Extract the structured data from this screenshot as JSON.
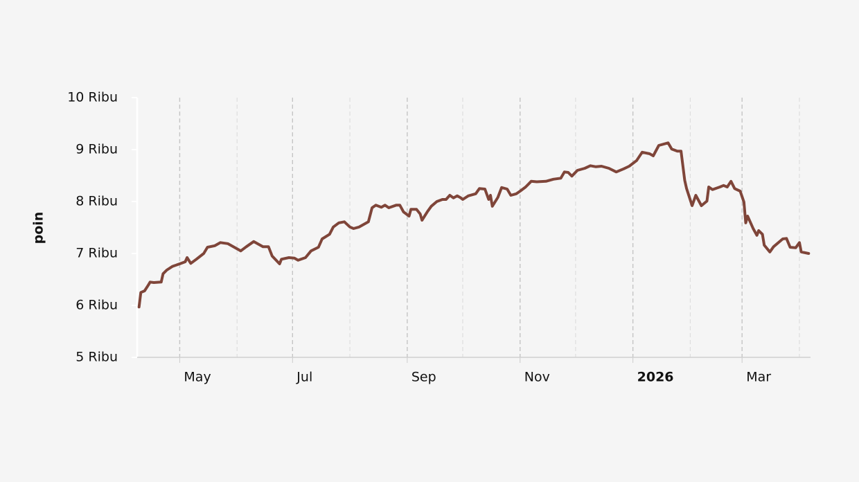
{
  "chart_data": {
    "type": "line",
    "ylabel": "poin",
    "x": [
      -22,
      -21,
      -19,
      -17,
      -16,
      -14,
      -10,
      -9,
      -7,
      -4,
      0,
      3,
      4,
      6,
      9,
      13,
      15,
      19,
      22,
      26,
      30,
      33,
      36,
      40,
      45,
      48,
      50,
      54,
      55,
      59,
      62,
      64,
      68,
      71,
      75,
      77,
      81,
      83,
      86,
      89,
      92,
      94,
      97,
      102,
      104,
      106,
      109,
      111,
      113,
      117,
      119,
      121,
      124,
      125,
      128,
      130,
      131,
      134,
      136,
      139,
      142,
      144,
      146,
      148,
      150,
      152,
      153,
      156,
      160,
      162,
      165,
      167,
      168,
      169,
      172,
      174,
      177,
      179,
      182,
      184,
      187,
      190,
      193,
      198,
      202,
      206,
      208,
      210,
      212,
      215,
      219,
      222,
      225,
      228,
      232,
      236,
      240,
      243,
      247,
      250,
      254,
      256,
      259,
      264,
      266,
      269,
      271,
      273,
      274,
      277,
      279,
      282,
      285,
      286,
      288,
      292,
      294,
      296,
      298,
      300,
      303,
      305,
      306,
      307,
      310,
      312,
      313,
      315,
      316,
      319,
      321,
      326,
      328,
      330,
      333,
      335,
      336,
      340
    ],
    "series": [
      {
        "name": "poin",
        "color": "#7f4539",
        "values": [
          5970,
          6250,
          6280,
          6390,
          6450,
          6440,
          6450,
          6610,
          6680,
          6750,
          6800,
          6840,
          6920,
          6810,
          6890,
          7000,
          7120,
          7150,
          7210,
          7190,
          7110,
          7050,
          7130,
          7230,
          7130,
          7130,
          6950,
          6800,
          6890,
          6920,
          6910,
          6870,
          6920,
          7050,
          7120,
          7280,
          7370,
          7510,
          7590,
          7610,
          7510,
          7480,
          7510,
          7610,
          7880,
          7930,
          7890,
          7930,
          7880,
          7930,
          7930,
          7800,
          7720,
          7850,
          7850,
          7760,
          7640,
          7810,
          7910,
          8000,
          8040,
          8040,
          8120,
          8070,
          8110,
          8070,
          8040,
          8110,
          8150,
          8250,
          8240,
          8040,
          8120,
          7910,
          8080,
          8270,
          8240,
          8120,
          8150,
          8200,
          8280,
          8390,
          8380,
          8390,
          8430,
          8450,
          8570,
          8560,
          8490,
          8600,
          8640,
          8690,
          8670,
          8680,
          8640,
          8570,
          8630,
          8680,
          8790,
          8950,
          8920,
          8880,
          9080,
          9130,
          9010,
          8970,
          8970,
          8410,
          8250,
          7920,
          8120,
          7920,
          8010,
          8280,
          8230,
          8280,
          8310,
          8280,
          8390,
          8250,
          8200,
          7990,
          7590,
          7720,
          7480,
          7350,
          7440,
          7370,
          7160,
          7030,
          7130,
          7280,
          7290,
          7120,
          7110,
          7210,
          7030,
          7000
        ]
      }
    ],
    "xlim": [
      -23,
      341
    ],
    "xticks": [
      {
        "value": 0,
        "label": "May"
      },
      {
        "value": 61,
        "label": "Jul"
      },
      {
        "value": 123,
        "label": "Sep"
      },
      {
        "value": 184,
        "label": "Nov"
      },
      {
        "value": 245,
        "label": "2026"
      },
      {
        "value": 304,
        "label": "Mar"
      }
    ],
    "xminorticks": [
      31,
      92,
      153,
      214,
      276,
      335
    ],
    "ylim": [
      5000,
      10000
    ],
    "yticks": [
      {
        "value": 5000,
        "label": "5 Ribu"
      },
      {
        "value": 6000,
        "label": "6 Ribu"
      },
      {
        "value": 7000,
        "label": "7 Ribu"
      },
      {
        "value": 8000,
        "label": "8 Ribu"
      },
      {
        "value": 9000,
        "label": "9 Ribu"
      },
      {
        "value": 10000,
        "label": "10 Ribu"
      }
    ],
    "grid": true
  }
}
